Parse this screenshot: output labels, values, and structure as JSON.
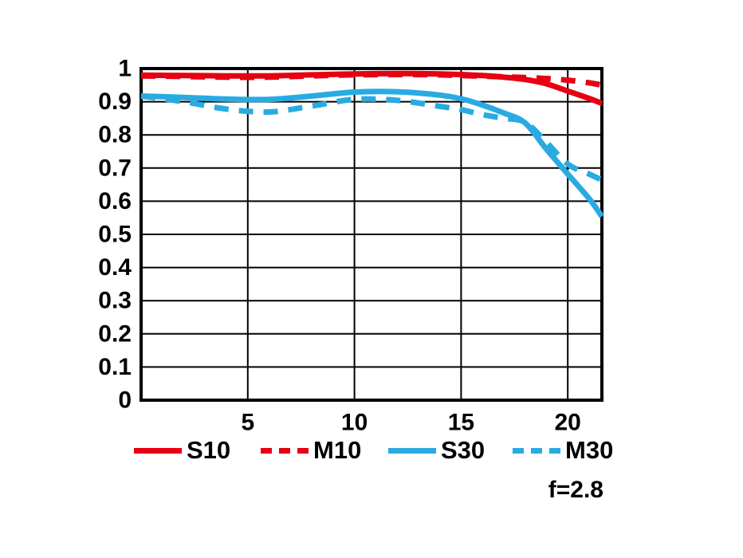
{
  "figure": {
    "background": "#ffffff"
  },
  "colors": {
    "red": "#e60012",
    "cyan": "#29abe2",
    "axis": "#000000",
    "text": "#000000"
  },
  "annotation": {
    "aperture": "f=2.8"
  },
  "chart_data": {
    "type": "line",
    "xlabel": "",
    "ylabel": "",
    "xlim": [
      0,
      21.6
    ],
    "ylim": [
      0,
      1
    ],
    "grid": true,
    "legend_position": "bottom",
    "annotation": "f=2.8",
    "x_ticks": [
      {
        "v": 5,
        "label": "5"
      },
      {
        "v": 10,
        "label": "10"
      },
      {
        "v": 15,
        "label": "15"
      },
      {
        "v": 20,
        "label": "20"
      }
    ],
    "y_ticks": [
      {
        "v": 0,
        "label": "0"
      },
      {
        "v": 0.1,
        "label": "0.1"
      },
      {
        "v": 0.2,
        "label": "0.2"
      },
      {
        "v": 0.3,
        "label": "0.3"
      },
      {
        "v": 0.4,
        "label": "0.4"
      },
      {
        "v": 0.5,
        "label": "0.5"
      },
      {
        "v": 0.6,
        "label": "0.6"
      },
      {
        "v": 0.7,
        "label": "0.7"
      },
      {
        "v": 0.8,
        "label": "0.8"
      },
      {
        "v": 0.9,
        "label": "0.9"
      },
      {
        "v": 1,
        "label": "1"
      }
    ],
    "series": [
      {
        "name": "S10",
        "color": "#e60012",
        "style": "solid",
        "points": [
          [
            0,
            0.98
          ],
          [
            2,
            0.979
          ],
          [
            4,
            0.978
          ],
          [
            6,
            0.978
          ],
          [
            8,
            0.981
          ],
          [
            10,
            0.984
          ],
          [
            12,
            0.985
          ],
          [
            14,
            0.984
          ],
          [
            16,
            0.979
          ],
          [
            17,
            0.974
          ],
          [
            18,
            0.967
          ],
          [
            19,
            0.954
          ],
          [
            20,
            0.932
          ],
          [
            21,
            0.91
          ],
          [
            21.6,
            0.895
          ]
        ]
      },
      {
        "name": "M10",
        "color": "#e60012",
        "style": "dashed",
        "points": [
          [
            0,
            0.978
          ],
          [
            2,
            0.976
          ],
          [
            4,
            0.974
          ],
          [
            6,
            0.974
          ],
          [
            8,
            0.978
          ],
          [
            10,
            0.981
          ],
          [
            12,
            0.982
          ],
          [
            14,
            0.981
          ],
          [
            16,
            0.977
          ],
          [
            17,
            0.975
          ],
          [
            18,
            0.973
          ],
          [
            19,
            0.97
          ],
          [
            20,
            0.965
          ],
          [
            21,
            0.957
          ],
          [
            21.6,
            0.95
          ]
        ]
      },
      {
        "name": "S30",
        "color": "#29abe2",
        "style": "solid",
        "points": [
          [
            0,
            0.917
          ],
          [
            2,
            0.913
          ],
          [
            4,
            0.908
          ],
          [
            6,
            0.907
          ],
          [
            8,
            0.917
          ],
          [
            10,
            0.929
          ],
          [
            12,
            0.93
          ],
          [
            14,
            0.92
          ],
          [
            15,
            0.909
          ],
          [
            16,
            0.89
          ],
          [
            17,
            0.866
          ],
          [
            18,
            0.836
          ],
          [
            19,
            0.757
          ],
          [
            20,
            0.682
          ],
          [
            21,
            0.608
          ],
          [
            21.6,
            0.554
          ]
        ]
      },
      {
        "name": "M30",
        "color": "#29abe2",
        "style": "dashed",
        "points": [
          [
            0,
            0.917
          ],
          [
            2,
            0.9
          ],
          [
            4,
            0.878
          ],
          [
            6,
            0.869
          ],
          [
            8,
            0.887
          ],
          [
            10,
            0.907
          ],
          [
            12,
            0.904
          ],
          [
            14,
            0.886
          ],
          [
            15,
            0.876
          ],
          [
            16,
            0.861
          ],
          [
            17,
            0.85
          ],
          [
            18,
            0.838
          ],
          [
            19,
            0.778
          ],
          [
            20,
            0.712
          ],
          [
            21,
            0.682
          ],
          [
            21.6,
            0.664
          ]
        ]
      }
    ]
  }
}
